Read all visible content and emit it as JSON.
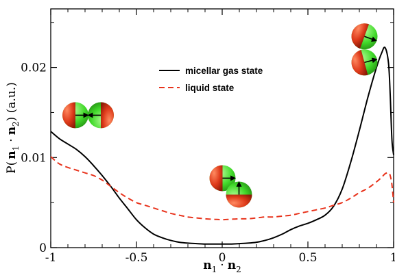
{
  "chart_data": {
    "type": "line",
    "xlabel": {
      "n1": "n",
      "sub1": "1",
      "dot": "·",
      "n2": "n",
      "sub2": "2"
    },
    "ylabel": {
      "prefix": "P(",
      "n1": "n",
      "sub1": "1",
      "dot": "·",
      "n2": "n",
      "sub2": "2",
      "suffix": ")  (a.u.)"
    },
    "xlim": [
      -1,
      1
    ],
    "ylim": [
      0,
      0.0265
    ],
    "x_ticks": [
      {
        "value": -1,
        "label": "-1"
      },
      {
        "value": -0.5,
        "label": "-0.5"
      },
      {
        "value": 0,
        "label": "0"
      },
      {
        "value": 0.5,
        "label": "0.5"
      },
      {
        "value": 1,
        "label": "1"
      }
    ],
    "y_ticks": [
      {
        "value": 0,
        "label": "0"
      },
      {
        "value": 0.01,
        "label": "0.01"
      },
      {
        "value": 0.02,
        "label": "0.02"
      }
    ],
    "legend_position": "top-center",
    "series": [
      {
        "name": "micellar gas state",
        "color": "#000000",
        "dash": "solid",
        "x": [
          -1.0,
          -0.95,
          -0.9,
          -0.85,
          -0.8,
          -0.75,
          -0.7,
          -0.65,
          -0.6,
          -0.55,
          -0.5,
          -0.45,
          -0.4,
          -0.35,
          -0.3,
          -0.25,
          -0.2,
          -0.15,
          -0.1,
          -0.05,
          0.0,
          0.05,
          0.1,
          0.15,
          0.2,
          0.25,
          0.3,
          0.35,
          0.4,
          0.45,
          0.5,
          0.55,
          0.6,
          0.65,
          0.7,
          0.75,
          0.8,
          0.85,
          0.9,
          0.93,
          0.95,
          0.97,
          0.98,
          0.99,
          1.0
        ],
        "y": [
          0.0129,
          0.0121,
          0.0115,
          0.0109,
          0.0101,
          0.0091,
          0.008,
          0.0068,
          0.0055,
          0.0043,
          0.0031,
          0.0022,
          0.0015,
          0.0011,
          0.0008,
          0.0006,
          0.0005,
          0.00045,
          0.0004,
          0.0004,
          0.0004,
          0.0004,
          0.00045,
          0.0005,
          0.0006,
          0.0008,
          0.0011,
          0.0015,
          0.002,
          0.0024,
          0.0027,
          0.0031,
          0.0036,
          0.0046,
          0.0065,
          0.0095,
          0.013,
          0.0167,
          0.02,
          0.0216,
          0.0222,
          0.0205,
          0.017,
          0.012,
          0.0103
        ]
      },
      {
        "name": "liquid state",
        "color": "#e8331c",
        "dash": "dashed",
        "x": [
          -1.0,
          -0.95,
          -0.9,
          -0.85,
          -0.8,
          -0.75,
          -0.7,
          -0.65,
          -0.6,
          -0.55,
          -0.5,
          -0.45,
          -0.4,
          -0.35,
          -0.3,
          -0.25,
          -0.2,
          -0.15,
          -0.1,
          -0.05,
          0.0,
          0.05,
          0.1,
          0.15,
          0.2,
          0.25,
          0.3,
          0.35,
          0.4,
          0.45,
          0.5,
          0.55,
          0.6,
          0.65,
          0.7,
          0.75,
          0.8,
          0.85,
          0.9,
          0.93,
          0.95,
          0.97,
          0.98,
          0.99,
          1.0
        ],
        "y": [
          0.0101,
          0.0093,
          0.0089,
          0.0086,
          0.0083,
          0.008,
          0.0075,
          0.0068,
          0.0061,
          0.0055,
          0.005,
          0.0047,
          0.0044,
          0.0041,
          0.0038,
          0.0036,
          0.0034,
          0.0033,
          0.0032,
          0.00315,
          0.0031,
          0.00315,
          0.0032,
          0.0032,
          0.0033,
          0.0034,
          0.0034,
          0.0035,
          0.0036,
          0.0038,
          0.004,
          0.0042,
          0.0044,
          0.0047,
          0.005,
          0.0055,
          0.0061,
          0.0066,
          0.0073,
          0.0078,
          0.0082,
          0.0083,
          0.008,
          0.007,
          0.005
        ]
      }
    ],
    "insets": [
      {
        "id": "antiparallel-pair",
        "arrangement": "head-to-head",
        "center": [
          -0.78,
          0.0147
        ]
      },
      {
        "id": "perpendicular-pair",
        "arrangement": "perpendicular",
        "center": [
          0.05,
          0.0068
        ]
      },
      {
        "id": "parallel-pair",
        "arrangement": "parallel",
        "center": [
          0.83,
          0.022
        ]
      }
    ],
    "colors": {
      "sphere_red": "#d8361a",
      "sphere_green": "#41d92a",
      "arrow": "#000000"
    }
  }
}
